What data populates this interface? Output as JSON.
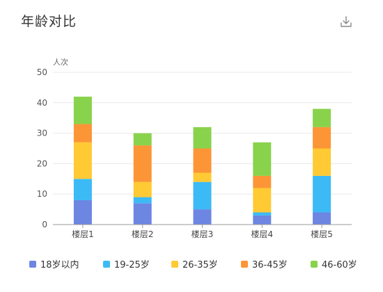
{
  "title": "年龄对比",
  "toolbar": {
    "download_icon": "download-icon"
  },
  "chart_data": {
    "type": "bar",
    "stacked": true,
    "ylabel": "人次",
    "ylim": [
      0,
      50
    ],
    "yticks": [
      0,
      10,
      20,
      30,
      40,
      50
    ],
    "grid": true,
    "legend_position": "bottom",
    "categories": [
      "楼层1",
      "楼层2",
      "楼层3",
      "楼层4",
      "楼层5"
    ],
    "series": [
      {
        "name": "18岁以内",
        "color": "#6c86e2",
        "values": [
          8,
          7,
          5,
          3,
          4
        ]
      },
      {
        "name": "19-25岁",
        "color": "#3cbaf5",
        "values": [
          7,
          2,
          9,
          1,
          12
        ]
      },
      {
        "name": "26-35岁",
        "color": "#ffca33",
        "values": [
          12,
          5,
          3,
          8,
          9
        ]
      },
      {
        "name": "36-45岁",
        "color": "#fc9536",
        "values": [
          6,
          12,
          8,
          4,
          7
        ]
      },
      {
        "name": "46-60岁",
        "color": "#89d24c",
        "values": [
          9,
          4,
          7,
          11,
          6
        ]
      }
    ]
  }
}
